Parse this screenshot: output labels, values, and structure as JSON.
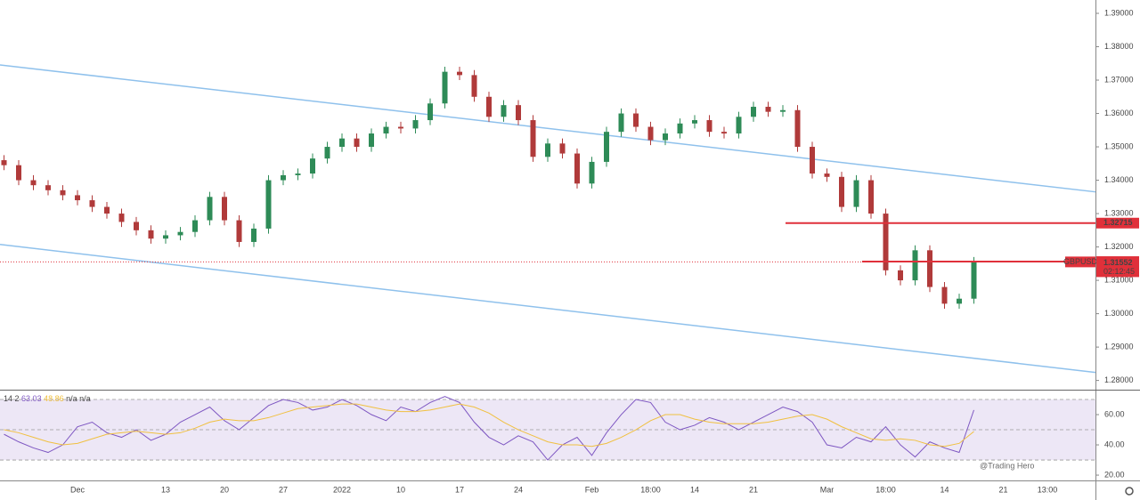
{
  "chart_data": [
    {
      "type": "candlestick",
      "symbol": "GBPUSD",
      "up_color": "#2e8b57",
      "down_color": "#b03a3a",
      "categories": [
        null,
        null,
        null,
        null,
        null,
        "Dec",
        null,
        null,
        null,
        null,
        null,
        "13",
        null,
        null,
        null,
        "20",
        null,
        null,
        null,
        "27",
        null,
        null,
        null,
        "2022",
        null,
        null,
        null,
        "10",
        null,
        null,
        null,
        "17",
        null,
        null,
        null,
        "24",
        null,
        null,
        null,
        null,
        "Feb",
        null,
        null,
        null,
        "18:00",
        null,
        null,
        "14",
        null,
        null,
        null,
        "21",
        null,
        null,
        null,
        null,
        "Mar",
        null,
        null,
        null,
        "18:00",
        null,
        null,
        null,
        "14",
        null,
        null,
        null,
        "21",
        null,
        null,
        "13:00"
      ],
      "open": [
        1.346,
        1.3445,
        1.34,
        1.3385,
        1.337,
        1.3355,
        1.334,
        1.332,
        1.33,
        1.3275,
        1.325,
        1.3225,
        1.3235,
        1.3245,
        1.328,
        1.335,
        1.328,
        1.3215,
        1.3255,
        1.34,
        1.3415,
        1.342,
        1.3465,
        1.35,
        1.3525,
        1.35,
        1.354,
        1.356,
        1.3555,
        1.358,
        1.363,
        1.3725,
        1.3715,
        1.365,
        1.359,
        1.3625,
        1.358,
        1.347,
        1.351,
        1.348,
        1.339,
        1.3455,
        1.3545,
        1.36,
        1.356,
        1.352,
        1.354,
        1.357,
        1.358,
        1.3545,
        1.354,
        1.359,
        1.362,
        1.3605,
        1.361,
        1.35,
        1.342,
        1.341,
        1.332,
        1.34,
        1.33,
        1.313,
        1.31,
        1.319,
        1.308,
        1.303,
        1.3045,
        null,
        null,
        null,
        null,
        null
      ],
      "high": [
        1.3475,
        1.346,
        1.3415,
        1.34,
        1.3385,
        1.337,
        1.3355,
        1.3335,
        1.3315,
        1.329,
        1.3265,
        1.325,
        1.326,
        1.3295,
        1.3365,
        1.3365,
        1.3295,
        1.327,
        1.3415,
        1.343,
        1.3435,
        1.348,
        1.3515,
        1.354,
        1.354,
        1.3555,
        1.3575,
        1.3575,
        1.3595,
        1.3645,
        1.374,
        1.374,
        1.373,
        1.3665,
        1.364,
        1.364,
        1.3595,
        1.3525,
        1.3525,
        1.3495,
        1.347,
        1.356,
        1.3615,
        1.3615,
        1.3575,
        1.3555,
        1.3585,
        1.3595,
        1.3595,
        1.356,
        1.3605,
        1.3635,
        1.3635,
        1.3625,
        1.3625,
        1.3515,
        1.3435,
        1.3425,
        1.3415,
        1.3415,
        1.3315,
        1.3145,
        1.3205,
        1.3205,
        1.3095,
        1.306,
        1.317,
        null,
        null,
        null,
        null,
        null
      ],
      "low": [
        1.343,
        1.3385,
        1.337,
        1.3355,
        1.334,
        1.3325,
        1.3305,
        1.3285,
        1.326,
        1.3235,
        1.321,
        1.321,
        1.322,
        1.323,
        1.3265,
        1.3265,
        1.32,
        1.32,
        1.324,
        1.3385,
        1.34,
        1.3405,
        1.345,
        1.3485,
        1.3485,
        1.3485,
        1.3525,
        1.354,
        1.354,
        1.3565,
        1.3615,
        1.37,
        1.3635,
        1.3575,
        1.3575,
        1.3565,
        1.3455,
        1.3455,
        1.3465,
        1.3375,
        1.3375,
        1.344,
        1.353,
        1.3545,
        1.3505,
        1.3505,
        1.3525,
        1.3555,
        1.353,
        1.3525,
        1.3525,
        1.3575,
        1.359,
        1.359,
        1.3485,
        1.3405,
        1.3395,
        1.3305,
        1.3305,
        1.3285,
        1.3115,
        1.3085,
        1.3085,
        1.3065,
        1.3015,
        1.3015,
        1.303,
        null,
        null,
        null,
        null,
        null
      ],
      "close": [
        1.3445,
        1.34,
        1.3385,
        1.337,
        1.3355,
        1.334,
        1.332,
        1.33,
        1.3275,
        1.325,
        1.3225,
        1.3235,
        1.3245,
        1.328,
        1.335,
        1.328,
        1.3215,
        1.3255,
        1.34,
        1.3415,
        1.342,
        1.3465,
        1.35,
        1.3525,
        1.35,
        1.354,
        1.356,
        1.3555,
        1.358,
        1.363,
        1.3725,
        1.3715,
        1.365,
        1.359,
        1.3625,
        1.358,
        1.347,
        1.351,
        1.348,
        1.339,
        1.3455,
        1.3545,
        1.36,
        1.356,
        1.352,
        1.354,
        1.357,
        1.358,
        1.3545,
        1.354,
        1.359,
        1.362,
        1.3605,
        1.361,
        1.35,
        1.342,
        1.341,
        1.332,
        1.34,
        1.33,
        1.313,
        1.31,
        1.319,
        1.308,
        1.303,
        1.3045,
        1.3155,
        null,
        null,
        null,
        null,
        null
      ],
      "ylim": [
        1.2775,
        1.394
      ],
      "yticks": [
        {
          "value": 1.39,
          "label": "1.39000"
        },
        {
          "value": 1.38,
          "label": "1.38000"
        },
        {
          "value": 1.37,
          "label": "1.37000"
        },
        {
          "value": 1.36,
          "label": "1.36000"
        },
        {
          "value": 1.35,
          "label": "1.35000"
        },
        {
          "value": 1.34,
          "label": "1.34000"
        },
        {
          "value": 1.33,
          "label": "1.33000"
        },
        {
          "value": 1.32,
          "label": "1.32000"
        },
        {
          "value": 1.31,
          "label": "1.31000"
        },
        {
          "value": 1.3,
          "label": "1.30000"
        },
        {
          "value": 1.29,
          "label": "1.29000"
        },
        {
          "value": 1.28,
          "label": "1.28000"
        }
      ],
      "channel_color": "#8fc1ec",
      "channel": [
        {
          "start": 1.37455,
          "end": 1.3365
        },
        {
          "start": 1.32075,
          "end": 1.2824
        }
      ],
      "level_color": "#e0303a",
      "levels": [
        {
          "value": 1.32715,
          "label": "1.32715"
        },
        {
          "value": 1.31561,
          "label": "1.31561"
        }
      ],
      "last_price": {
        "value": 1.31552,
        "label": "1.31552",
        "countdown": "02:12:45"
      },
      "watermark": "@Trading Hero"
    },
    {
      "type": "line",
      "params": "14 2",
      "header_na": "n/a n/a",
      "series": [
        {
          "name": "RSI",
          "color": "#7e57c2",
          "values": [
            47,
            42,
            38,
            35,
            40,
            52,
            55,
            48,
            45,
            50,
            43,
            47,
            55,
            60,
            65,
            56,
            50,
            58,
            66,
            70,
            68,
            63,
            65,
            70,
            66,
            60,
            56,
            65,
            62,
            68,
            72,
            68,
            55,
            45,
            40,
            46,
            42,
            30,
            40,
            45,
            33,
            48,
            60,
            70,
            68,
            55,
            50,
            53,
            58,
            55,
            50,
            55,
            60,
            65,
            62,
            55,
            40,
            38,
            45,
            42,
            52,
            40,
            32,
            42,
            38,
            35,
            63.03,
            null,
            null,
            null,
            null,
            null
          ]
        },
        {
          "name": "MA",
          "color": "#f0c040",
          "values": [
            50,
            48,
            45,
            42,
            40,
            41,
            44,
            47,
            48,
            49,
            48,
            47,
            48,
            51,
            55,
            57,
            56,
            56,
            58,
            61,
            64,
            65,
            66,
            67,
            67,
            65,
            63,
            62,
            62,
            63,
            65,
            67,
            65,
            61,
            55,
            50,
            46,
            42,
            40,
            40,
            39,
            41,
            45,
            50,
            56,
            60,
            60,
            57,
            55,
            54,
            54,
            54,
            55,
            57,
            59,
            60,
            57,
            52,
            48,
            44,
            43,
            44,
            43,
            40,
            39,
            41,
            48.86,
            null,
            null,
            null,
            null,
            null
          ]
        }
      ],
      "ylim": [
        16.5,
        75.3
      ],
      "yticks": [
        {
          "value": 60,
          "label": "60.00"
        },
        {
          "value": 40,
          "label": "40.00"
        },
        {
          "value": 20,
          "label": "20.00"
        }
      ],
      "bands": [
        70,
        50,
        30
      ],
      "band_fill": "#ede7f6"
    }
  ]
}
